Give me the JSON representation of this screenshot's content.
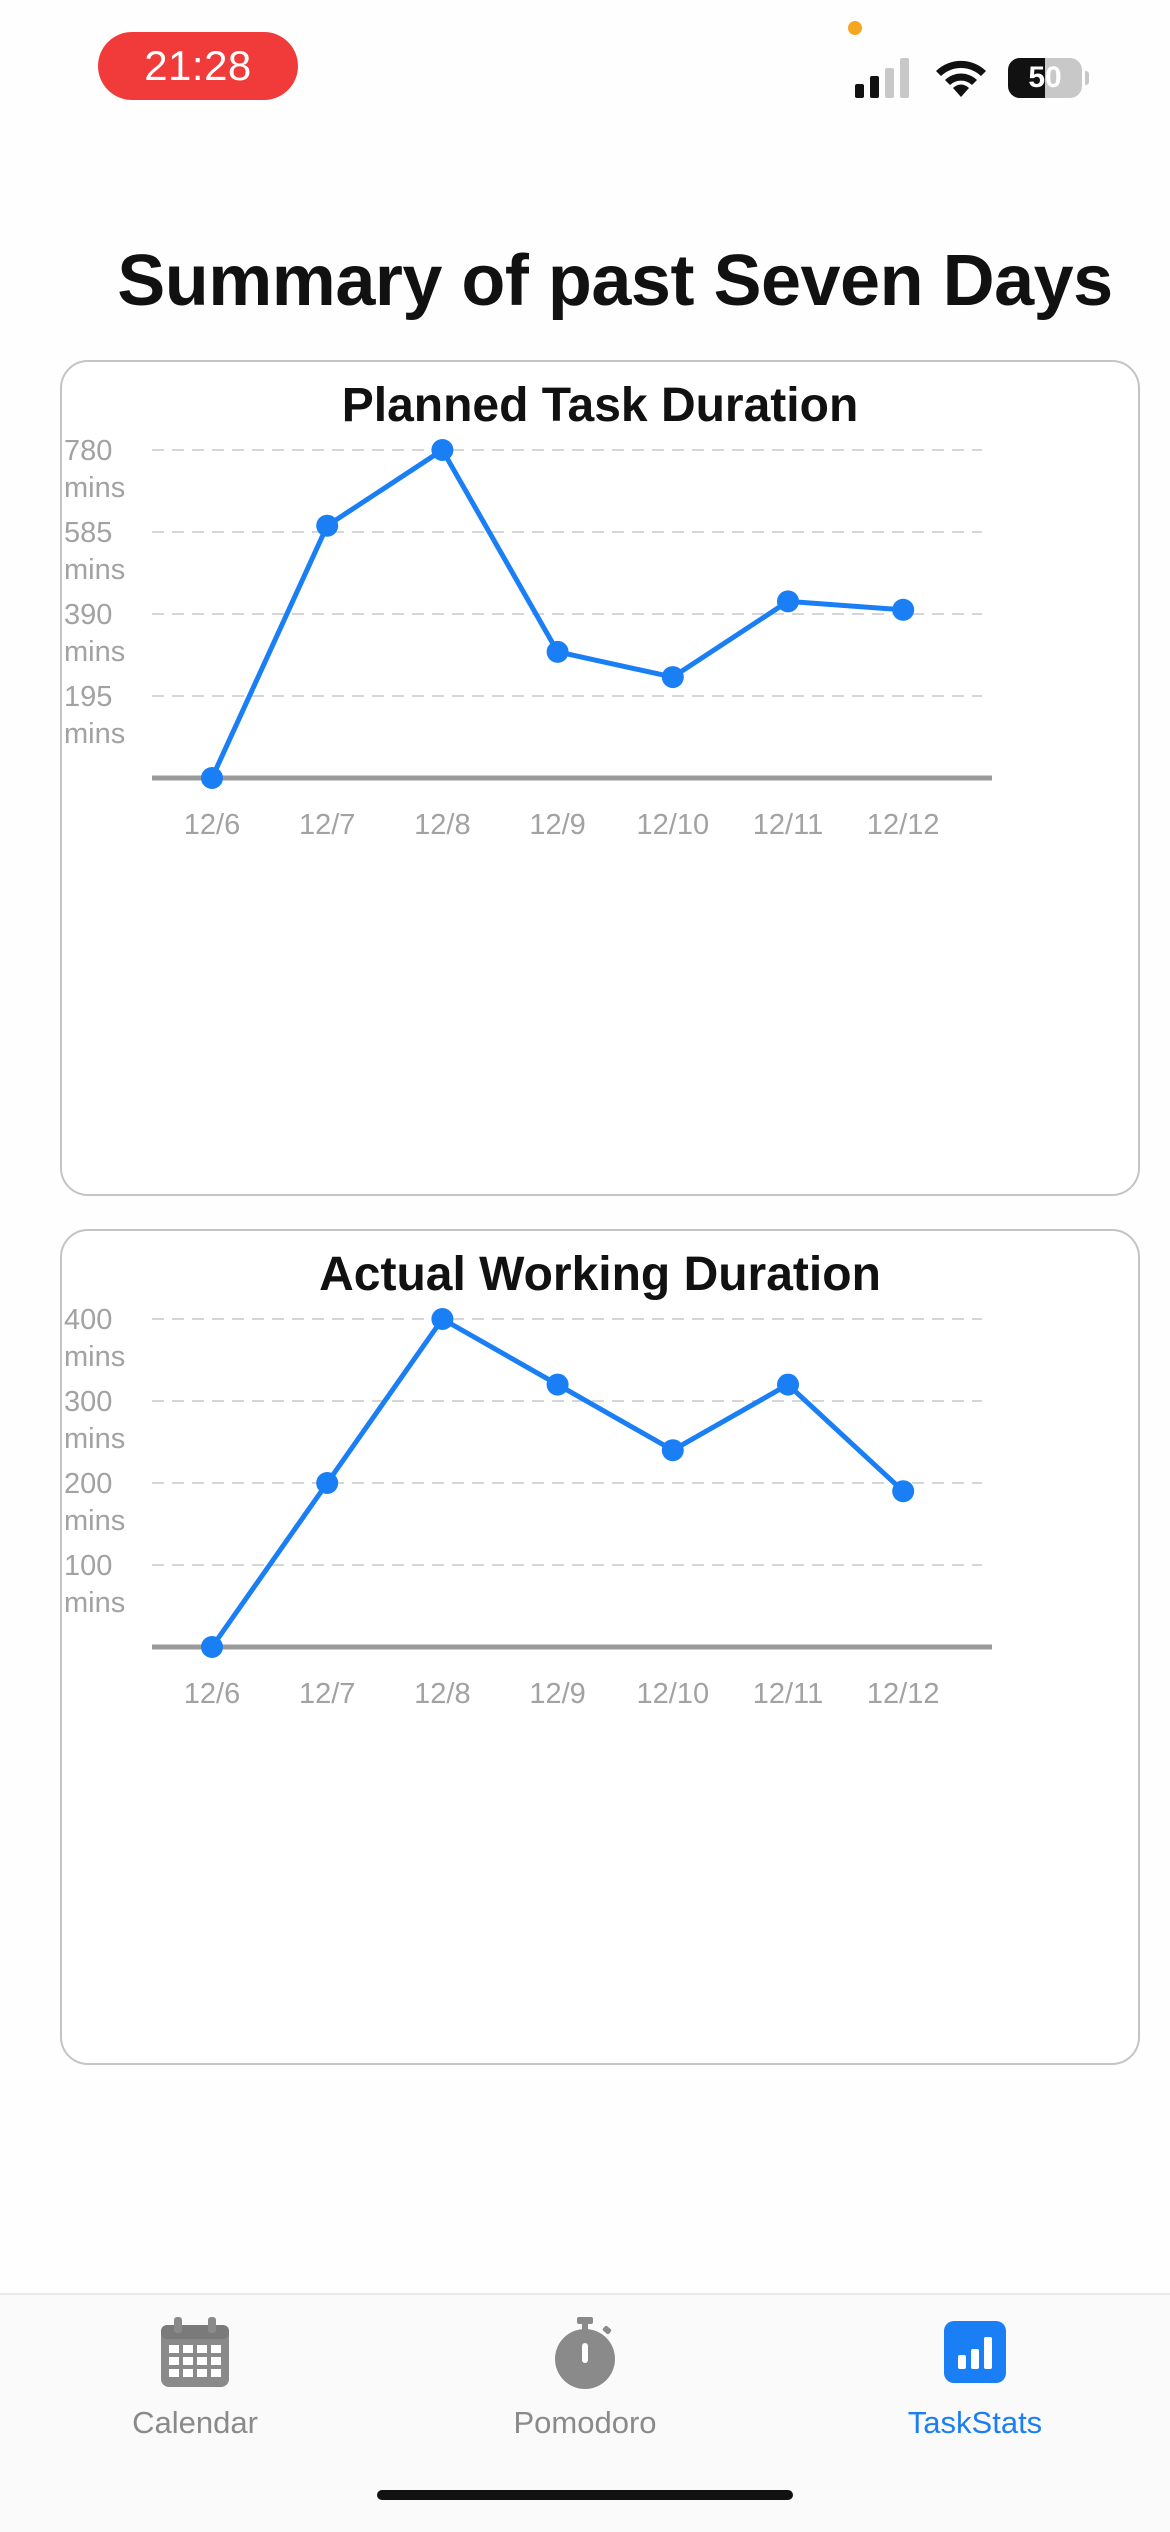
{
  "status_bar": {
    "time": "21:28",
    "battery": "50",
    "battery_level": 0.5
  },
  "page": {
    "title": "Summary of past Seven Days"
  },
  "charts": [
    {
      "title": "Planned Task Duration",
      "y_tick_values": [
        "780",
        "585",
        "390",
        "195"
      ],
      "unit": "mins"
    },
    {
      "title": "Actual Working Duration",
      "y_tick_values": [
        "400",
        "300",
        "200",
        "100"
      ],
      "unit": "mins"
    }
  ],
  "chart_data": [
    {
      "type": "line",
      "title": "Planned Task Duration",
      "categories": [
        "12/6",
        "12/7",
        "12/8",
        "12/9",
        "12/10",
        "12/11",
        "12/12"
      ],
      "values": [
        0,
        600,
        780,
        300,
        240,
        420,
        400
      ],
      "ylim": [
        0,
        780
      ],
      "yticks": [
        195,
        390,
        585,
        780
      ],
      "ylabel_unit": "mins",
      "grid": true,
      "color": "#1a7ef5"
    },
    {
      "type": "line",
      "title": "Actual Working Duration",
      "categories": [
        "12/6",
        "12/7",
        "12/8",
        "12/9",
        "12/10",
        "12/11",
        "12/12"
      ],
      "values": [
        0,
        200,
        400,
        320,
        240,
        320,
        190
      ],
      "ylim": [
        0,
        400
      ],
      "yticks": [
        100,
        200,
        300,
        400
      ],
      "ylabel_unit": "mins",
      "grid": true,
      "color": "#1a7ef5"
    }
  ],
  "tab_bar": {
    "items": [
      {
        "label": "Calendar",
        "icon": "calendar-icon",
        "active": false
      },
      {
        "label": "Pomodoro",
        "icon": "stopwatch-icon",
        "active": false
      },
      {
        "label": "TaskStats",
        "icon": "chart-bar-icon",
        "active": true
      }
    ],
    "active_color": "#1a7ef5",
    "inactive_color": "#8a8a8a"
  }
}
